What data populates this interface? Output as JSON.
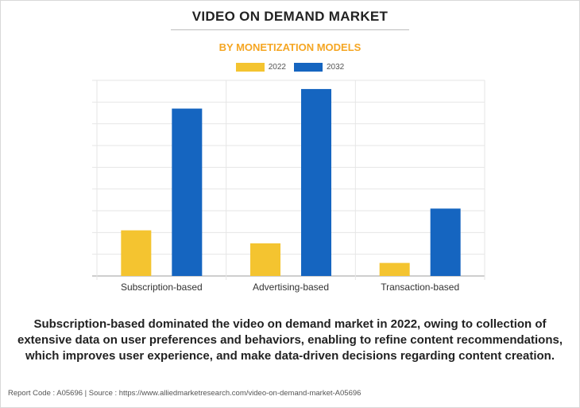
{
  "header": {
    "title": "VIDEO ON DEMAND MARKET",
    "subtitle": "BY MONETIZATION MODELS"
  },
  "colors": {
    "series_2022": "#f4c430",
    "series_2032": "#1565c0",
    "subtitle": "#f5a623"
  },
  "chart_data": {
    "type": "bar",
    "categories": [
      "Subscription-based",
      "Advertising-based",
      "Transaction-based"
    ],
    "series": [
      {
        "name": "2022",
        "values": [
          21,
          15,
          6
        ]
      },
      {
        "name": "2032",
        "values": [
          77,
          86,
          31
        ]
      }
    ],
    "ylim": [
      0,
      90
    ],
    "grid": true,
    "legend": "top-center",
    "xlabel": "",
    "ylabel": ""
  },
  "caption": "Subscription-based dominated the video on demand market in 2022, owing to collection of extensive data on user preferences and behaviors, enabling to refine content recommendations, which improves user experience, and make data-driven decisions regarding content creation.",
  "footer": "Report Code : A05696  |  Source : https://www.alliedmarketresearch.com/video-on-demand-market-A05696"
}
